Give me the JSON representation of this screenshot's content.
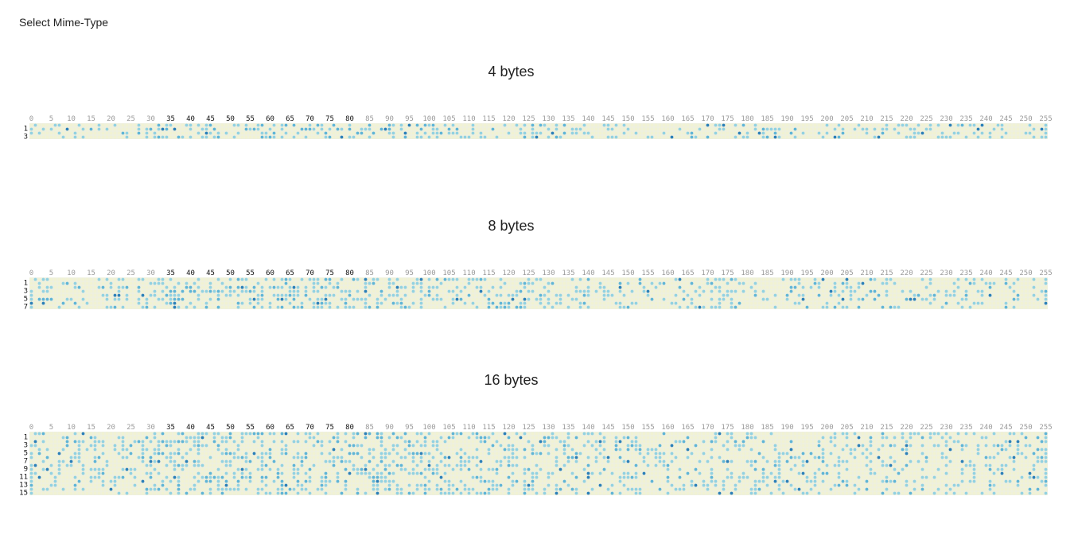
{
  "header": {
    "select_label": "Select Mime-Type"
  },
  "colors": {
    "cell_background": "#eef0df",
    "cell_empty": "#f4f4c8",
    "cell_light": "#8ccfe0",
    "cell_medium": "#5fb4d6",
    "cell_dark": "#2b7fb8",
    "tick_gray": "#9a9a9a",
    "tick_dark": "#111111"
  },
  "panels": [
    {
      "title": "4 bytes",
      "chart_data": {
        "type": "heatmap",
        "x_min": 0,
        "x_max": 255,
        "x_ticks": [
          "0",
          "5",
          "10",
          "15",
          "20",
          "25",
          "30",
          "35",
          "40",
          "45",
          "50",
          "55",
          "60",
          "65",
          "70",
          "75",
          "80",
          "85",
          "90",
          "95",
          "100",
          "105",
          "110",
          "115",
          "120",
          "125",
          "130",
          "135",
          "140",
          "145",
          "150",
          "155",
          "160",
          "165",
          "170",
          "175",
          "180",
          "185",
          "190",
          "195",
          "200",
          "205",
          "210",
          "215",
          "220",
          "225",
          "230",
          "235",
          "240",
          "245",
          "250",
          "255"
        ],
        "dark_x_ticks": [
          "35",
          "40",
          "45",
          "50",
          "55",
          "60",
          "65",
          "70",
          "75",
          "80"
        ],
        "rows": 4,
        "y_ticks": [
          "1",
          "3"
        ]
      }
    },
    {
      "title": "8 bytes",
      "chart_data": {
        "type": "heatmap",
        "x_min": 0,
        "x_max": 255,
        "x_ticks": [
          "0",
          "5",
          "10",
          "15",
          "20",
          "25",
          "30",
          "35",
          "40",
          "45",
          "50",
          "55",
          "60",
          "65",
          "70",
          "75",
          "80",
          "85",
          "90",
          "95",
          "100",
          "105",
          "110",
          "115",
          "120",
          "125",
          "130",
          "135",
          "140",
          "145",
          "150",
          "155",
          "160",
          "165",
          "170",
          "175",
          "180",
          "185",
          "190",
          "195",
          "200",
          "205",
          "210",
          "215",
          "220",
          "225",
          "230",
          "235",
          "240",
          "245",
          "250",
          "255"
        ],
        "dark_x_ticks": [
          "35",
          "40",
          "45",
          "50",
          "55",
          "60",
          "65",
          "70",
          "75",
          "80"
        ],
        "rows": 8,
        "y_ticks": [
          "1",
          "3",
          "5",
          "7"
        ]
      }
    },
    {
      "title": "16 bytes",
      "chart_data": {
        "type": "heatmap",
        "x_min": 0,
        "x_max": 255,
        "x_ticks": [
          "0",
          "5",
          "10",
          "15",
          "20",
          "25",
          "30",
          "35",
          "40",
          "45",
          "50",
          "55",
          "60",
          "65",
          "70",
          "75",
          "80",
          "85",
          "90",
          "95",
          "100",
          "105",
          "110",
          "115",
          "120",
          "125",
          "130",
          "135",
          "140",
          "145",
          "150",
          "155",
          "160",
          "165",
          "170",
          "175",
          "180",
          "185",
          "190",
          "195",
          "200",
          "205",
          "210",
          "215",
          "220",
          "225",
          "230",
          "235",
          "240",
          "245",
          "250",
          "255"
        ],
        "dark_x_ticks": [
          "35",
          "40",
          "45",
          "50",
          "55",
          "60",
          "65",
          "70",
          "75",
          "80"
        ],
        "rows": 16,
        "y_ticks": [
          "1",
          "3",
          "5",
          "7",
          "9",
          "11",
          "13",
          "15"
        ]
      }
    }
  ]
}
